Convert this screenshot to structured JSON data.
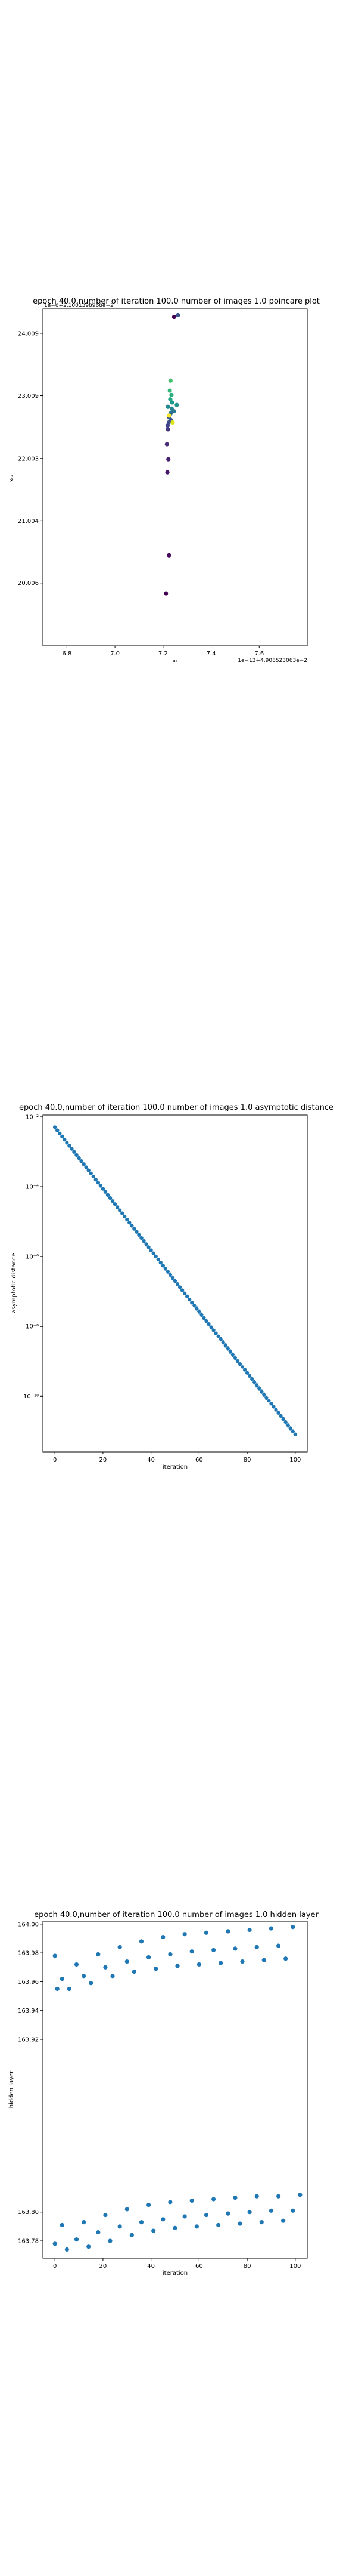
{
  "chart_data": [
    {
      "type": "scatter",
      "title": "epoch 40.0,number of iteration 100.0  number of images 1.0 poincare plot",
      "xlabel": "xₜ",
      "ylabel": "xₜ₊₁",
      "x_offset_text": "1e−13+4.908523063e−2",
      "y_offset_text": "1e−6+2.1001398968e−2",
      "xlim": [
        6.7,
        7.8
      ],
      "ylim": [
        19.0,
        24.4
      ],
      "xticks": [
        6.8,
        7.0,
        7.2,
        7.4,
        7.6
      ],
      "xtick_labels": [
        "6.8",
        "7.0",
        "7.2",
        "7.4",
        "7.6"
      ],
      "yticks": [
        20.006,
        21.004,
        22.003,
        23.009,
        24.009
      ],
      "ytick_labels": [
        "20.006",
        "21.004",
        "22.003",
        "23.009",
        "24.009"
      ],
      "points": [
        {
          "x": 7.212,
          "y": 19.84,
          "c": "#440154"
        },
        {
          "x": 7.225,
          "y": 20.45,
          "c": "#46085c"
        },
        {
          "x": 7.218,
          "y": 21.78,
          "c": "#481467"
        },
        {
          "x": 7.222,
          "y": 21.99,
          "c": "#482173"
        },
        {
          "x": 7.216,
          "y": 22.23,
          "c": "#472c7a"
        },
        {
          "x": 7.221,
          "y": 22.47,
          "c": "#453781"
        },
        {
          "x": 7.219,
          "y": 22.53,
          "c": "#424086"
        },
        {
          "x": 7.224,
          "y": 22.58,
          "c": "#3e4a89"
        },
        {
          "x": 7.232,
          "y": 22.62,
          "c": "#3a548c"
        },
        {
          "x": 7.226,
          "y": 22.66,
          "c": "#365c8d"
        },
        {
          "x": 7.228,
          "y": 22.7,
          "c": "#31668e"
        },
        {
          "x": 7.233,
          "y": 22.73,
          "c": "#2e6e8e"
        },
        {
          "x": 7.245,
          "y": 22.76,
          "c": "#2a778e"
        },
        {
          "x": 7.236,
          "y": 22.8,
          "c": "#26818e"
        },
        {
          "x": 7.22,
          "y": 22.83,
          "c": "#23898e"
        },
        {
          "x": 7.257,
          "y": 22.86,
          "c": "#20928c"
        },
        {
          "x": 7.238,
          "y": 22.9,
          "c": "#1f9a8a"
        },
        {
          "x": 7.23,
          "y": 22.95,
          "c": "#22a785"
        },
        {
          "x": 7.235,
          "y": 23.02,
          "c": "#2ab07f"
        },
        {
          "x": 7.228,
          "y": 23.09,
          "c": "#35b779"
        },
        {
          "x": 7.231,
          "y": 23.25,
          "c": "#44bf70"
        },
        {
          "x": 7.24,
          "y": 22.58,
          "c": "#dde318"
        },
        {
          "x": 7.225,
          "y": 22.69,
          "c": "#fde725"
        },
        {
          "x": 7.246,
          "y": 24.27,
          "c": "#440154"
        },
        {
          "x": 7.262,
          "y": 24.3,
          "c": "#3b528b"
        }
      ]
    },
    {
      "type": "scatter",
      "title": "epoch 40.0,number of iteration 100.0  number of images 1.0 asymptotic distance",
      "xlabel": "iteration",
      "ylabel": "asymptotic distance",
      "yscale": "log",
      "xlim": [
        -5,
        105
      ],
      "ylim_log10": [
        -11.6,
        -1.95
      ],
      "xticks": [
        0,
        20,
        40,
        60,
        80,
        100
      ],
      "yticks_log10": [
        -2,
        -4,
        -6,
        -8,
        -10
      ],
      "ytick_labels": [
        "10⁻²",
        "10⁻⁴",
        "10⁻⁶",
        "10⁻⁸",
        "10⁻¹⁰"
      ],
      "series": [
        {
          "x_start": 0,
          "x_end": 100,
          "log10_start": -2.3,
          "log10_end": -11.1
        }
      ]
    },
    {
      "type": "scatter",
      "title": "epoch 40.0,number of iteration 100.0  number of images 1.0 hidden layer",
      "xlabel": "iteration",
      "ylabel": "hidden layer",
      "xlim": [
        -5,
        105
      ],
      "ylim": [
        163.768,
        164.002
      ],
      "xticks": [
        0,
        20,
        40,
        60,
        80,
        100
      ],
      "yticks": [
        163.78,
        163.8,
        163.92,
        163.94,
        163.96,
        163.98,
        164.0
      ],
      "ytick_labels": [
        "163.78",
        "163.80",
        "163.92",
        "163.94",
        "163.96",
        "163.98",
        "164.00"
      ],
      "series": [
        {
          "x": [
            0,
            9,
            18,
            27,
            36,
            45,
            54,
            63,
            72,
            81,
            90,
            99
          ],
          "values": [
            163.978,
            163.972,
            163.979,
            163.984,
            163.988,
            163.991,
            163.993,
            163.994,
            163.995,
            163.996,
            163.997,
            163.998
          ]
        },
        {
          "x": [
            3,
            12,
            21,
            30,
            39,
            48,
            57,
            66,
            75,
            84,
            93
          ],
          "values": [
            163.962,
            163.964,
            163.97,
            163.974,
            163.977,
            163.979,
            163.981,
            163.982,
            163.983,
            163.984,
            163.985
          ]
        },
        {
          "x": [
            1,
            6,
            15,
            24,
            33,
            42,
            51,
            60,
            69,
            78,
            87,
            96
          ],
          "values": [
            163.955,
            163.955,
            163.959,
            163.964,
            163.967,
            163.969,
            163.971,
            163.972,
            163.973,
            163.974,
            163.975,
            163.976
          ]
        },
        {
          "x": [
            3,
            12,
            21,
            30,
            39,
            48,
            57,
            66,
            75,
            84,
            93,
            102
          ],
          "values": [
            163.791,
            163.793,
            163.798,
            163.802,
            163.805,
            163.807,
            163.808,
            163.809,
            163.81,
            163.811,
            163.811,
            163.812
          ]
        },
        {
          "x": [
            0,
            9,
            18,
            27,
            36,
            45,
            54,
            63,
            72,
            81,
            90,
            99
          ],
          "values": [
            163.778,
            163.781,
            163.786,
            163.79,
            163.793,
            163.795,
            163.797,
            163.798,
            163.799,
            163.8,
            163.801,
            163.801
          ]
        },
        {
          "x": [
            5,
            14,
            23,
            32,
            41,
            50,
            59,
            68,
            77,
            86,
            95
          ],
          "values": [
            163.774,
            163.776,
            163.78,
            163.784,
            163.787,
            163.789,
            163.79,
            163.791,
            163.792,
            163.793,
            163.794
          ]
        }
      ]
    }
  ]
}
